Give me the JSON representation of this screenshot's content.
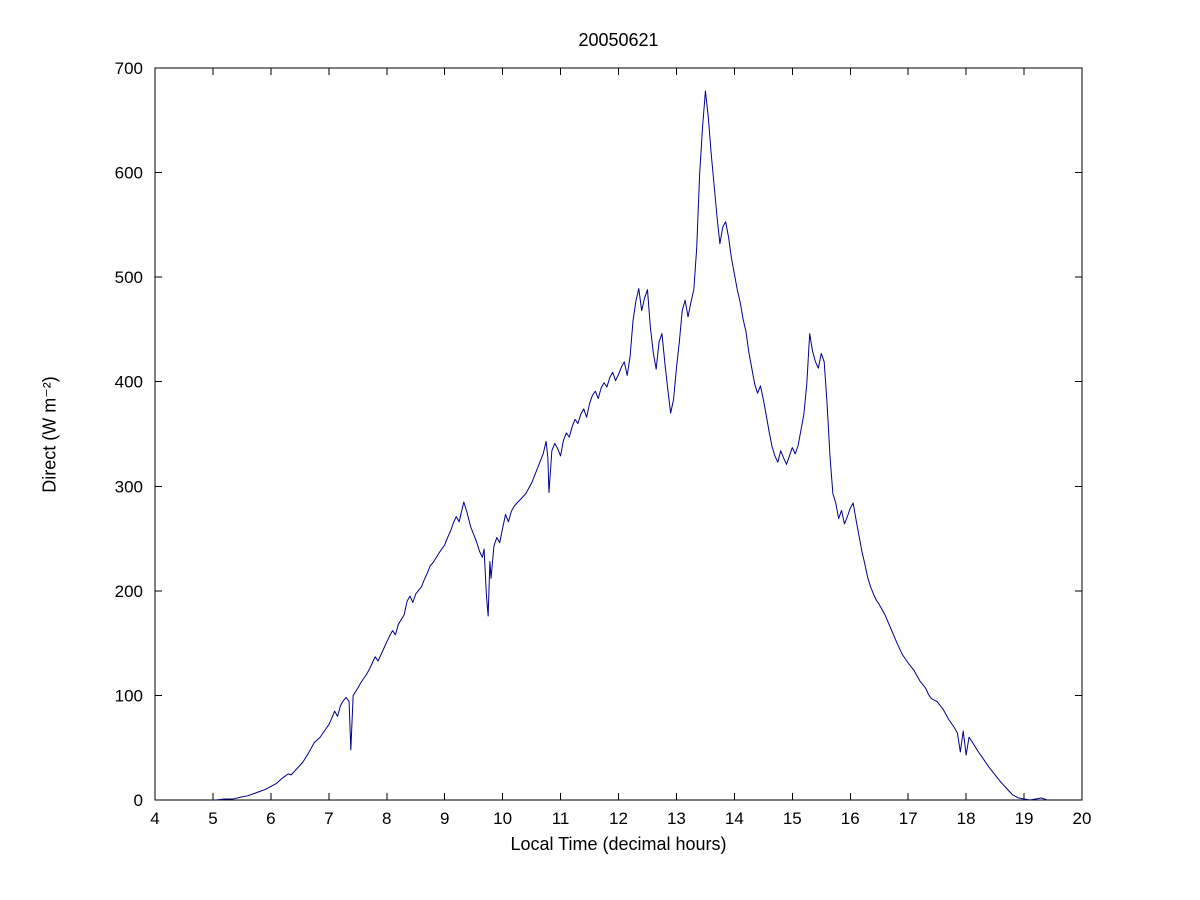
{
  "chart_data": {
    "type": "line",
    "title": "20050621",
    "xlabel": "Local Time (decimal hours)",
    "ylabel": "Direct (W m⁻²)",
    "xlim": [
      4,
      20
    ],
    "ylim": [
      0,
      700
    ],
    "xticks": [
      4,
      5,
      6,
      7,
      8,
      9,
      10,
      11,
      12,
      13,
      14,
      15,
      16,
      17,
      18,
      19,
      20
    ],
    "yticks": [
      0,
      100,
      200,
      300,
      400,
      500,
      600,
      700
    ],
    "grid": false,
    "legend": "none",
    "line_color": "#00008B",
    "axis_color": "#000000",
    "background_color": "#ffffff",
    "series": [
      {
        "name": "Direct",
        "points": [
          [
            5.05,
            0
          ],
          [
            5.2,
            1
          ],
          [
            5.35,
            1
          ],
          [
            5.5,
            3
          ],
          [
            5.6,
            4
          ],
          [
            5.7,
            6
          ],
          [
            5.8,
            8
          ],
          [
            5.9,
            10
          ],
          [
            6.0,
            13
          ],
          [
            6.1,
            16
          ],
          [
            6.2,
            21
          ],
          [
            6.3,
            25
          ],
          [
            6.35,
            24
          ],
          [
            6.45,
            30
          ],
          [
            6.55,
            36
          ],
          [
            6.65,
            45
          ],
          [
            6.75,
            55
          ],
          [
            6.85,
            60
          ],
          [
            6.95,
            68
          ],
          [
            7.0,
            72
          ],
          [
            7.05,
            78
          ],
          [
            7.1,
            85
          ],
          [
            7.15,
            80
          ],
          [
            7.2,
            90
          ],
          [
            7.25,
            95
          ],
          [
            7.3,
            98
          ],
          [
            7.35,
            94
          ],
          [
            7.38,
            48
          ],
          [
            7.42,
            100
          ],
          [
            7.5,
            107
          ],
          [
            7.55,
            112
          ],
          [
            7.65,
            120
          ],
          [
            7.7,
            125
          ],
          [
            7.75,
            131
          ],
          [
            7.8,
            137
          ],
          [
            7.85,
            133
          ],
          [
            7.95,
            145
          ],
          [
            8.0,
            151
          ],
          [
            8.05,
            157
          ],
          [
            8.1,
            162
          ],
          [
            8.15,
            158
          ],
          [
            8.2,
            168
          ],
          [
            8.3,
            177
          ],
          [
            8.35,
            190
          ],
          [
            8.4,
            195
          ],
          [
            8.45,
            189
          ],
          [
            8.5,
            197
          ],
          [
            8.6,
            204
          ],
          [
            8.65,
            211
          ],
          [
            8.7,
            217
          ],
          [
            8.75,
            224
          ],
          [
            8.8,
            227
          ],
          [
            8.9,
            236
          ],
          [
            9.0,
            244
          ],
          [
            9.05,
            251
          ],
          [
            9.1,
            257
          ],
          [
            9.15,
            265
          ],
          [
            9.2,
            271
          ],
          [
            9.25,
            266
          ],
          [
            9.3,
            278
          ],
          [
            9.33,
            285
          ],
          [
            9.38,
            276
          ],
          [
            9.45,
            261
          ],
          [
            9.5,
            254
          ],
          [
            9.55,
            247
          ],
          [
            9.6,
            238
          ],
          [
            9.65,
            232
          ],
          [
            9.68,
            240
          ],
          [
            9.72,
            196
          ],
          [
            9.75,
            176
          ],
          [
            9.78,
            228
          ],
          [
            9.8,
            212
          ],
          [
            9.85,
            243
          ],
          [
            9.9,
            251
          ],
          [
            9.95,
            246
          ],
          [
            10.0,
            260
          ],
          [
            10.05,
            273
          ],
          [
            10.1,
            266
          ],
          [
            10.15,
            276
          ],
          [
            10.2,
            281
          ],
          [
            10.3,
            287
          ],
          [
            10.4,
            293
          ],
          [
            10.5,
            303
          ],
          [
            10.55,
            310
          ],
          [
            10.6,
            317
          ],
          [
            10.65,
            324
          ],
          [
            10.7,
            331
          ],
          [
            10.75,
            343
          ],
          [
            10.78,
            328
          ],
          [
            10.8,
            294
          ],
          [
            10.85,
            334
          ],
          [
            10.9,
            341
          ],
          [
            10.95,
            336
          ],
          [
            11.0,
            329
          ],
          [
            11.05,
            344
          ],
          [
            11.1,
            351
          ],
          [
            11.15,
            347
          ],
          [
            11.2,
            357
          ],
          [
            11.25,
            364
          ],
          [
            11.3,
            360
          ],
          [
            11.35,
            369
          ],
          [
            11.4,
            374
          ],
          [
            11.45,
            366
          ],
          [
            11.5,
            379
          ],
          [
            11.55,
            387
          ],
          [
            11.6,
            391
          ],
          [
            11.65,
            384
          ],
          [
            11.7,
            394
          ],
          [
            11.75,
            399
          ],
          [
            11.8,
            395
          ],
          [
            11.85,
            404
          ],
          [
            11.9,
            409
          ],
          [
            11.95,
            401
          ],
          [
            12.0,
            407
          ],
          [
            12.05,
            414
          ],
          [
            12.1,
            419
          ],
          [
            12.15,
            406
          ],
          [
            12.2,
            424
          ],
          [
            12.25,
            458
          ],
          [
            12.3,
            477
          ],
          [
            12.35,
            489
          ],
          [
            12.4,
            468
          ],
          [
            12.45,
            480
          ],
          [
            12.5,
            488
          ],
          [
            12.55,
            452
          ],
          [
            12.6,
            428
          ],
          [
            12.65,
            412
          ],
          [
            12.7,
            438
          ],
          [
            12.75,
            446
          ],
          [
            12.8,
            418
          ],
          [
            12.85,
            393
          ],
          [
            12.9,
            370
          ],
          [
            12.95,
            383
          ],
          [
            13.0,
            413
          ],
          [
            13.05,
            438
          ],
          [
            13.1,
            468
          ],
          [
            13.15,
            478
          ],
          [
            13.2,
            462
          ],
          [
            13.25,
            476
          ],
          [
            13.3,
            488
          ],
          [
            13.35,
            528
          ],
          [
            13.4,
            598
          ],
          [
            13.45,
            643
          ],
          [
            13.5,
            678
          ],
          [
            13.55,
            653
          ],
          [
            13.6,
            618
          ],
          [
            13.65,
            588
          ],
          [
            13.7,
            558
          ],
          [
            13.75,
            532
          ],
          [
            13.8,
            548
          ],
          [
            13.85,
            553
          ],
          [
            13.9,
            538
          ],
          [
            13.95,
            518
          ],
          [
            14.0,
            503
          ],
          [
            14.05,
            488
          ],
          [
            14.1,
            476
          ],
          [
            14.15,
            460
          ],
          [
            14.2,
            448
          ],
          [
            14.25,
            428
          ],
          [
            14.3,
            413
          ],
          [
            14.35,
            398
          ],
          [
            14.4,
            389
          ],
          [
            14.45,
            396
          ],
          [
            14.5,
            383
          ],
          [
            14.55,
            368
          ],
          [
            14.6,
            352
          ],
          [
            14.65,
            338
          ],
          [
            14.7,
            329
          ],
          [
            14.75,
            323
          ],
          [
            14.8,
            334
          ],
          [
            14.85,
            327
          ],
          [
            14.9,
            321
          ],
          [
            14.95,
            329
          ],
          [
            15.0,
            337
          ],
          [
            15.05,
            331
          ],
          [
            15.1,
            339
          ],
          [
            15.15,
            354
          ],
          [
            15.2,
            369
          ],
          [
            15.25,
            398
          ],
          [
            15.3,
            446
          ],
          [
            15.35,
            429
          ],
          [
            15.4,
            419
          ],
          [
            15.45,
            413
          ],
          [
            15.5,
            427
          ],
          [
            15.55,
            419
          ],
          [
            15.6,
            379
          ],
          [
            15.65,
            329
          ],
          [
            15.7,
            293
          ],
          [
            15.75,
            284
          ],
          [
            15.8,
            269
          ],
          [
            15.85,
            277
          ],
          [
            15.9,
            264
          ],
          [
            15.95,
            271
          ],
          [
            16.0,
            279
          ],
          [
            16.05,
            284
          ],
          [
            16.1,
            268
          ],
          [
            16.15,
            253
          ],
          [
            16.2,
            238
          ],
          [
            16.25,
            226
          ],
          [
            16.3,
            213
          ],
          [
            16.35,
            204
          ],
          [
            16.4,
            197
          ],
          [
            16.45,
            191
          ],
          [
            16.5,
            187
          ],
          [
            16.6,
            177
          ],
          [
            16.7,
            164
          ],
          [
            16.8,
            151
          ],
          [
            16.9,
            139
          ],
          [
            17.0,
            131
          ],
          [
            17.1,
            124
          ],
          [
            17.2,
            114
          ],
          [
            17.3,
            107
          ],
          [
            17.35,
            101
          ],
          [
            17.4,
            97
          ],
          [
            17.5,
            94
          ],
          [
            17.6,
            87
          ],
          [
            17.7,
            77
          ],
          [
            17.8,
            69
          ],
          [
            17.85,
            64
          ],
          [
            17.9,
            46
          ],
          [
            17.95,
            66
          ],
          [
            18.0,
            43
          ],
          [
            18.05,
            60
          ],
          [
            18.1,
            56
          ],
          [
            18.2,
            47
          ],
          [
            18.3,
            39
          ],
          [
            18.4,
            31
          ],
          [
            18.5,
            24
          ],
          [
            18.6,
            17
          ],
          [
            18.7,
            11
          ],
          [
            18.8,
            5
          ],
          [
            18.9,
            2
          ],
          [
            19.0,
            1
          ],
          [
            19.1,
            0
          ],
          [
            19.2,
            1
          ],
          [
            19.3,
            2
          ],
          [
            19.4,
            0
          ]
        ]
      }
    ]
  }
}
